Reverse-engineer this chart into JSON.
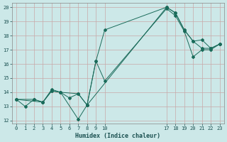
{
  "xlabel": "Humidex (Indice chaleur)",
  "bg_color": "#cce8e8",
  "grid_color": "#c8a8a8",
  "line_color": "#1a6b5a",
  "xlim": [
    -0.5,
    23.5
  ],
  "ylim": [
    11.8,
    20.3
  ],
  "xticks": [
    0,
    1,
    2,
    3,
    4,
    5,
    6,
    7,
    8,
    9,
    10,
    17,
    18,
    19,
    20,
    21,
    22,
    23
  ],
  "yticks": [
    12,
    13,
    14,
    15,
    16,
    17,
    18,
    19,
    20
  ],
  "lines": [
    {
      "x": [
        0,
        1,
        2,
        3,
        4,
        5,
        7,
        8,
        9,
        10,
        17,
        18,
        19,
        20,
        21,
        22,
        23
      ],
      "y": [
        13.5,
        13.0,
        13.5,
        13.3,
        14.1,
        14.0,
        12.1,
        13.1,
        16.2,
        18.4,
        20.0,
        19.6,
        18.4,
        17.6,
        17.1,
        17.1,
        17.4
      ]
    },
    {
      "x": [
        0,
        2,
        3,
        4,
        5,
        7,
        8,
        17,
        18,
        19,
        20,
        21,
        22,
        23
      ],
      "y": [
        13.5,
        13.5,
        13.3,
        14.2,
        14.0,
        13.9,
        13.1,
        20.0,
        19.6,
        18.4,
        17.6,
        17.7,
        17.1,
        17.4
      ]
    },
    {
      "x": [
        0,
        3,
        4,
        5,
        6,
        7,
        8,
        9,
        10,
        17,
        18,
        19,
        20,
        21,
        22,
        23
      ],
      "y": [
        13.5,
        13.3,
        14.1,
        14.0,
        13.6,
        13.9,
        13.1,
        16.2,
        14.8,
        19.9,
        19.4,
        18.3,
        16.5,
        17.0,
        17.0,
        17.4
      ]
    }
  ]
}
